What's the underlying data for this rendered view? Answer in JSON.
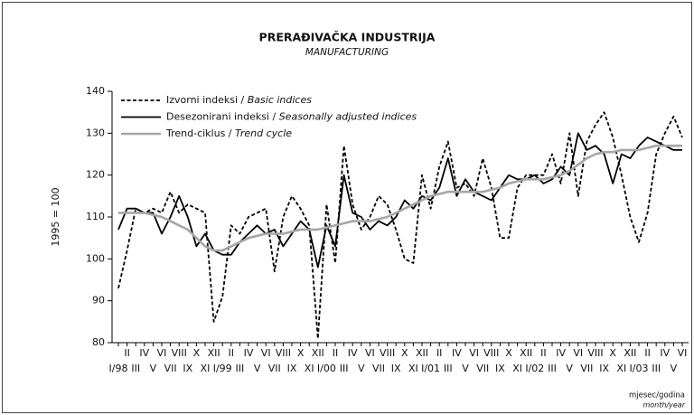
{
  "chart_data": {
    "type": "line",
    "title": "PRERAĐIVAČKA INDUSTRIJA",
    "subtitle": "MANUFACTURING",
    "y_label": "1995 = 100",
    "x_label": "mjesec/godina",
    "x_label_en": "month/year",
    "ylim": [
      80,
      140
    ],
    "yticks": [
      80,
      90,
      100,
      110,
      120,
      130,
      140
    ],
    "categories": [
      "I/98",
      "II",
      "III",
      "IV",
      "V",
      "VI",
      "VII",
      "VIII",
      "IX",
      "X",
      "XI",
      "XII",
      "I/99",
      "II",
      "III",
      "IV",
      "V",
      "VI",
      "VII",
      "VIII",
      "IX",
      "X",
      "XI",
      "XII",
      "I/00",
      "II",
      "III",
      "IV",
      "V",
      "VI",
      "VII",
      "VIII",
      "IX",
      "X",
      "XI",
      "XII",
      "I/01",
      "II",
      "III",
      "IV",
      "V",
      "VI",
      "VII",
      "VIII",
      "IX",
      "X",
      "XI",
      "XII",
      "I/02",
      "II",
      "III",
      "IV",
      "V",
      "VI",
      "VII",
      "VIII",
      "IX",
      "X",
      "XI",
      "XII",
      "I/03",
      "II",
      "III",
      "IV",
      "V",
      "VI"
    ],
    "series": [
      {
        "name": "Izvorni indeksi / Basic indices",
        "color": "#000000",
        "dash": true,
        "values": [
          93,
          102,
          112,
          111,
          112,
          111,
          116,
          111,
          113,
          112,
          111,
          85,
          91,
          108,
          106,
          110,
          111,
          112,
          97,
          110,
          115,
          112,
          108,
          81,
          113,
          99,
          127,
          113,
          107,
          110,
          115,
          113,
          107,
          100,
          99,
          120,
          112,
          122,
          128,
          117,
          118,
          115,
          124,
          117,
          105,
          105,
          117,
          120,
          120,
          120,
          125,
          118,
          130,
          115,
          128,
          132,
          135,
          129,
          120,
          110,
          104,
          111,
          125,
          130,
          134,
          129
        ]
      },
      {
        "name": "Desezonirani indeksi / Seasonally adjusted indices",
        "color": "#000000",
        "dash": false,
        "values": [
          107,
          112,
          112,
          111,
          111,
          106,
          110,
          115,
          110,
          103,
          106,
          102,
          101,
          101,
          104,
          106,
          108,
          106,
          107,
          103,
          106,
          109,
          107,
          98,
          108,
          103,
          120,
          111,
          110,
          107,
          109,
          108,
          110,
          114,
          112,
          115,
          114,
          117,
          124,
          115,
          119,
          116,
          115,
          114,
          117,
          120,
          119,
          119,
          120,
          118,
          119,
          122,
          120,
          130,
          126,
          127,
          125,
          118,
          125,
          124,
          127,
          129,
          128,
          127,
          126,
          126
        ]
      },
      {
        "name": "Trend-ciklus / Trend cycle",
        "color": "#a6a6a6",
        "dash": false,
        "values": [
          111,
          111,
          111,
          111,
          110.5,
          110,
          109,
          108,
          107,
          105,
          103,
          102,
          102,
          103,
          104,
          105,
          105.5,
          106,
          106,
          106,
          106.5,
          107,
          107,
          107,
          107.5,
          108,
          108.5,
          109,
          109,
          109,
          109.5,
          110,
          111,
          112,
          113,
          114,
          115,
          115.5,
          116,
          116,
          116,
          116,
          116,
          116.5,
          117,
          118,
          118.5,
          119,
          119,
          119,
          119.5,
          120,
          121,
          122.5,
          124,
          125,
          125.5,
          125.5,
          126,
          126,
          126,
          126.5,
          127,
          127,
          127,
          127
        ]
      }
    ]
  }
}
